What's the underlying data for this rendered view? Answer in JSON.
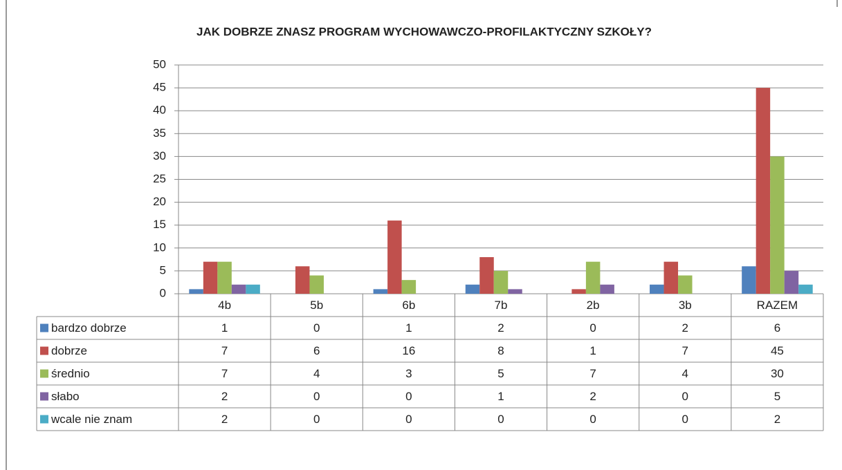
{
  "chart_data": {
    "type": "bar",
    "title": "JAK DOBRZE ZNASZ PROGRAM WYCHOWAWCZO-PROFILAKTYCZNY SZKOŁY?",
    "categories": [
      "4b",
      "5b",
      "6b",
      "7b",
      "2b",
      "3b",
      "RAZEM"
    ],
    "series": [
      {
        "name": "bardzo dobrze",
        "color": "#4f81bd",
        "values": [
          1,
          0,
          1,
          2,
          0,
          2,
          6
        ]
      },
      {
        "name": "dobrze",
        "color": "#c0504d",
        "values": [
          7,
          6,
          16,
          8,
          1,
          7,
          45
        ]
      },
      {
        "name": "średnio",
        "color": "#9bbb59",
        "values": [
          7,
          4,
          3,
          5,
          7,
          4,
          30
        ]
      },
      {
        "name": "słabo",
        "color": "#8064a2",
        "values": [
          2,
          0,
          0,
          1,
          2,
          0,
          5
        ]
      },
      {
        "name": "wcale nie znam",
        "color": "#4bacc6",
        "values": [
          2,
          0,
          0,
          0,
          0,
          0,
          2
        ]
      }
    ],
    "ylim": [
      0,
      50
    ],
    "yticks": [
      0,
      5,
      10,
      15,
      20,
      25,
      30,
      35,
      40,
      45,
      50
    ],
    "grid": true
  }
}
